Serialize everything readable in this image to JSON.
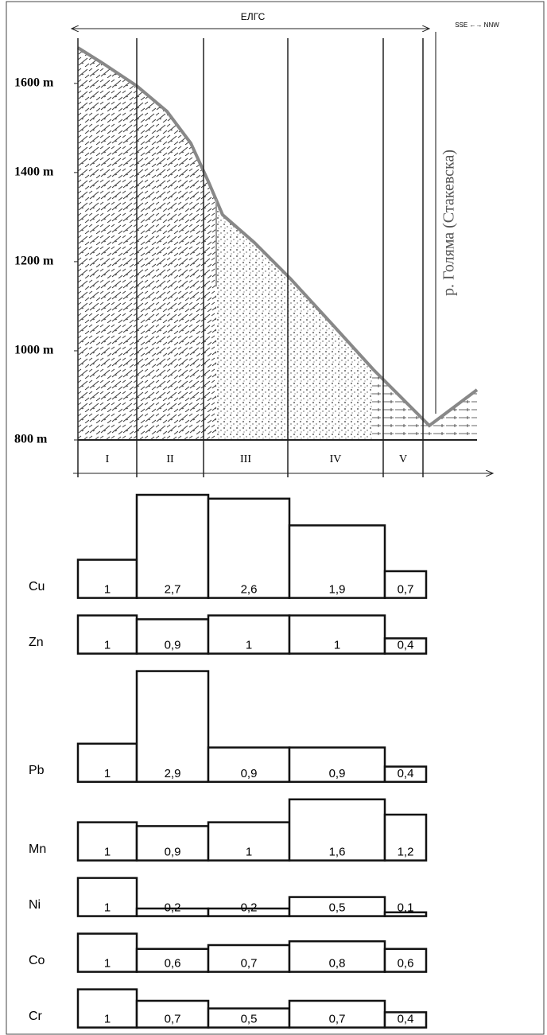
{
  "chart_data": [
    {
      "type": "profile",
      "title": "ЕЛГС",
      "subtitle": "SSE ←→ NNW",
      "annotation": "р. Голяма (Стакевска)",
      "categories": [
        "I",
        "II",
        "III",
        "IV",
        "V"
      ],
      "ylim": [
        800,
        1680
      ],
      "yticks": [
        {
          "value": 800,
          "label": "800 m"
        },
        {
          "value": 1000,
          "label": "1000 m"
        },
        {
          "value": 1200,
          "label": "1200 m"
        },
        {
          "value": 1400,
          "label": "1400 m"
        },
        {
          "value": 1600,
          "label": "1600 m"
        }
      ]
    },
    {
      "type": "bar",
      "color": "#ffffff",
      "series": [
        {
          "name": "Cu",
          "values": [
            1,
            2.7,
            2.6,
            1.9,
            0.7
          ],
          "value_labels": [
            "1",
            "2,7",
            "2,6",
            "1,9",
            "0,7"
          ]
        },
        {
          "name": "Zn",
          "values": [
            1,
            0.9,
            1,
            1,
            0.4
          ],
          "value_labels": [
            "1",
            "0,9",
            "1",
            "1",
            "0,4"
          ]
        },
        {
          "name": "Pb",
          "values": [
            1,
            2.9,
            0.9,
            0.9,
            0.4
          ],
          "value_labels": [
            "1",
            "2,9",
            "0,9",
            "0,9",
            "0,4"
          ]
        },
        {
          "name": "Mn",
          "values": [
            1,
            0.9,
            1,
            1.6,
            1.2
          ],
          "value_labels": [
            "1",
            "0,9",
            "1",
            "1,6",
            "1,2"
          ]
        },
        {
          "name": "Ni",
          "values": [
            1,
            0.2,
            0.2,
            0.5,
            0.1
          ],
          "value_labels": [
            "1",
            "0,2",
            "0,2",
            "0,5",
            "0,1"
          ]
        },
        {
          "name": "Co",
          "values": [
            1,
            0.6,
            0.7,
            0.8,
            0.6
          ],
          "value_labels": [
            "1",
            "0,6",
            "0,7",
            "0,8",
            "0,6"
          ]
        },
        {
          "name": "Cr",
          "values": [
            1,
            0.7,
            0.5,
            0.7,
            0.4
          ],
          "value_labels": [
            "1",
            "0,7",
            "0,5",
            "0,7",
            "0,4"
          ]
        }
      ]
    }
  ]
}
